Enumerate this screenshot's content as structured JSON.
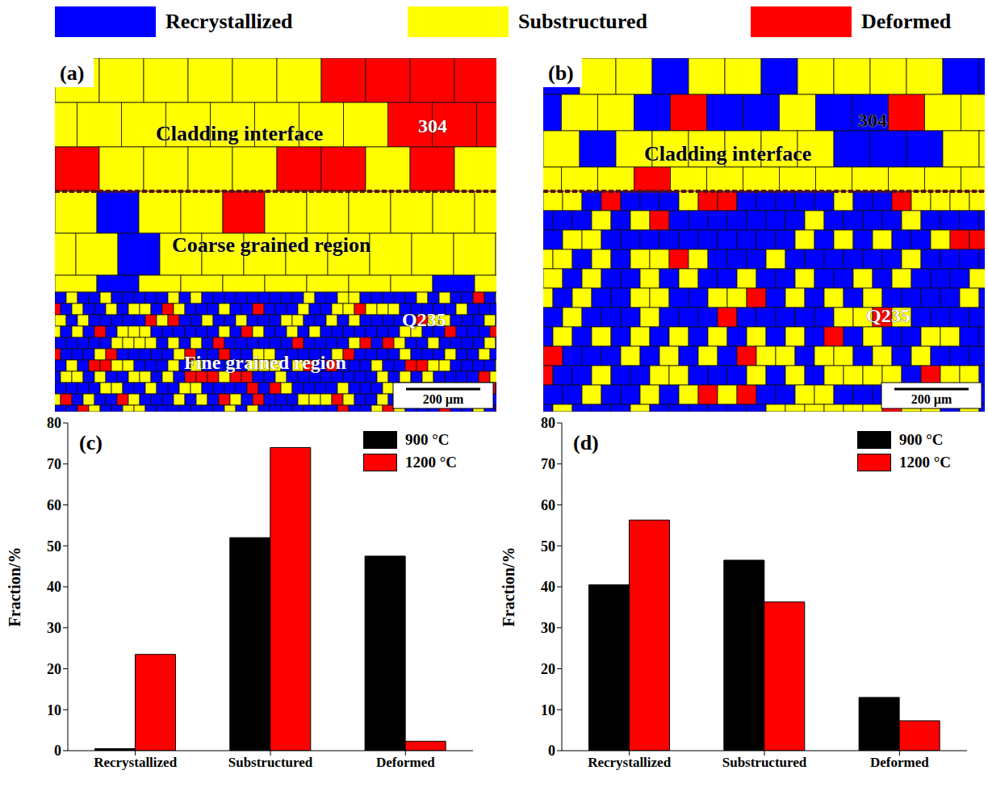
{
  "header": {
    "items": [
      {
        "label": "Recrystallized",
        "color": "#0000ff"
      },
      {
        "label": "Substructured",
        "color": "#ffff00"
      },
      {
        "label": "Deformed",
        "color": "#ff0000"
      }
    ]
  },
  "maps": [
    {
      "panel": "(a)",
      "labels": [
        "Cladding interface",
        "304",
        "Coarse grained region",
        "Q235",
        "Fine grained region"
      ],
      "scale_bar": "200 µm"
    },
    {
      "panel": "(b)",
      "labels": [
        "Cladding interface",
        "304",
        "Q235"
      ],
      "scale_bar": "200 µm"
    }
  ],
  "chart_data": [
    {
      "type": "bar",
      "title": "(c)",
      "y_label": "Fraction/%",
      "categories": [
        "Recrystallized",
        "Substructured",
        "Deformed"
      ],
      "series": [
        {
          "name": "900 °C",
          "color": "#000000",
          "values": [
            0.5,
            52,
            47.5
          ]
        },
        {
          "name": "1200 °C",
          "color": "#ff0000",
          "values": [
            23.5,
            74,
            2.3
          ]
        }
      ],
      "ylim": [
        0,
        80
      ],
      "yticks": [
        0,
        10,
        20,
        30,
        40,
        50,
        60,
        70,
        80
      ],
      "legend": "upper right"
    },
    {
      "type": "bar",
      "title": "(d)",
      "y_label": "Fraction/%",
      "categories": [
        "Recrystallized",
        "Substructured",
        "Deformed"
      ],
      "series": [
        {
          "name": "900 °C",
          "color": "#000000",
          "values": [
            40.5,
            46.5,
            13
          ]
        },
        {
          "name": "1200 °C",
          "color": "#ff0000",
          "values": [
            56.3,
            36.3,
            7.3
          ]
        }
      ],
      "ylim": [
        0,
        80
      ],
      "yticks": [
        0,
        10,
        20,
        30,
        40,
        50,
        60,
        70,
        80
      ],
      "legend": "upper right"
    }
  ]
}
